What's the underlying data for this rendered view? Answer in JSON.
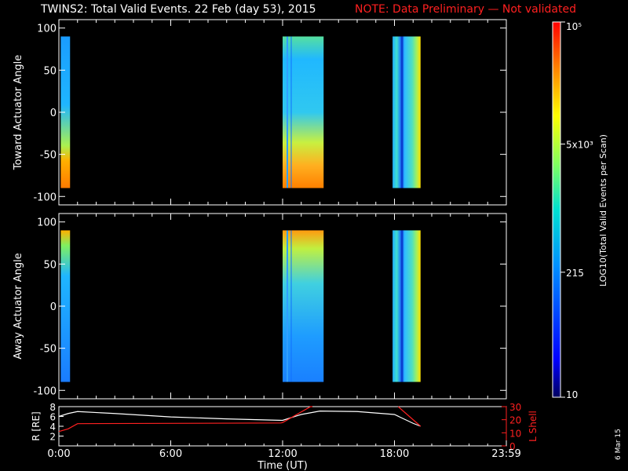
{
  "header": {
    "title": "TWINS2: Total Valid Events. 22 Feb (day  53), 2015",
    "note": "NOTE: Data Preliminary — Not validated"
  },
  "footer": {
    "date_stamp": "6 Mar 15",
    "xlabel": "Time (UT)"
  },
  "colorbar": {
    "label": "LOG10(Total Valid Events per Scan)",
    "ticks": [
      "10",
      "215",
      "5x10³",
      "10⁵"
    ],
    "tick_values": [
      10,
      215,
      5000,
      100000
    ],
    "colors": [
      "#000080",
      "#0050ff",
      "#00d0e0",
      "#80ff60",
      "#ffff00",
      "#ff8000",
      "#ff0000"
    ]
  },
  "chart_data": [
    {
      "type": "heatmap",
      "name": "toward",
      "ylabel": "Toward Actuator Angle",
      "ylim": [
        -110,
        110
      ],
      "yticks": [
        -100,
        -50,
        0,
        50,
        100
      ],
      "xlim_hours": [
        0,
        24
      ],
      "scan_intervals_hours": [
        [
          0.1,
          0.6
        ],
        [
          12.0,
          14.2
        ],
        [
          17.9,
          19.4
        ]
      ],
      "angle_range": [
        -90,
        90
      ]
    },
    {
      "type": "heatmap",
      "name": "away",
      "ylabel": "Away Actuator Angle",
      "ylim": [
        -110,
        110
      ],
      "yticks": [
        -100,
        -50,
        0,
        50,
        100
      ],
      "xlim_hours": [
        0,
        24
      ],
      "scan_intervals_hours": [
        [
          0.1,
          0.6
        ],
        [
          12.0,
          14.2
        ],
        [
          17.9,
          19.4
        ]
      ],
      "angle_range": [
        -90,
        90
      ]
    },
    {
      "type": "line",
      "name": "orbit",
      "ylabel_left": "R [RE]",
      "ylabel_right": "L Shell",
      "ylim_left": [
        0,
        8
      ],
      "yticks_left": [
        0,
        2,
        4,
        6,
        8
      ],
      "ylim_right": [
        0,
        30
      ],
      "yticks_right": [
        0,
        10,
        20,
        30
      ],
      "xticks": [
        "0:00",
        "6:00",
        "12:00",
        "18:00",
        "23:59"
      ],
      "xtick_hours": [
        0,
        6,
        12,
        18,
        24
      ],
      "series": [
        {
          "name": "R",
          "color": "#ffffff",
          "x": [
            0,
            0.5,
            1,
            3,
            6,
            9,
            11,
            12,
            13,
            14,
            16,
            18,
            19,
            19.4
          ],
          "y": [
            6.0,
            6.6,
            7.0,
            6.6,
            5.9,
            5.5,
            5.3,
            5.2,
            6.4,
            7.1,
            7.0,
            6.4,
            4.6,
            4.0
          ]
        },
        {
          "name": "L",
          "color": "#ff2020",
          "x": [
            0,
            0.5,
            1,
            11.9,
            12.0,
            13.5,
            13.6
          ],
          "y": [
            11,
            13,
            17,
            17.5,
            17.8,
            32,
            32
          ]
        },
        {
          "name": "L2",
          "color": "#ff2020",
          "x": [
            18.2,
            19.4
          ],
          "y": [
            32,
            15
          ]
        }
      ]
    }
  ]
}
